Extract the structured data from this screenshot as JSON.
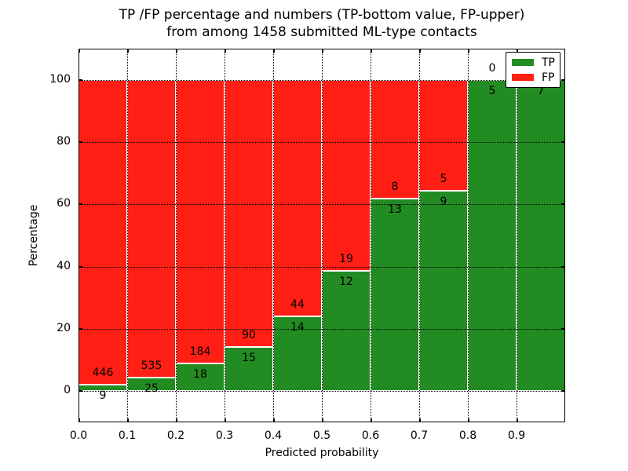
{
  "chart_data": {
    "type": "bar",
    "stacked": true,
    "title_line1": "TP /FP percentage and numbers (TP-bottom value, FP-upper)",
    "title_line2": "from among 1458 submitted ML-type contacts",
    "total_contacts": 1458,
    "xlabel": "Predicted probability",
    "ylabel": "Percentage",
    "xlim": [
      0.0,
      1.0
    ],
    "ylim": [
      -10,
      110
    ],
    "bin_width": 0.1,
    "bin_starts": [
      0.0,
      0.1,
      0.2,
      0.3,
      0.4,
      0.5,
      0.6,
      0.7,
      0.8,
      0.9
    ],
    "x_tick_labels": [
      "0.0",
      "0.1",
      "0.2",
      "0.3",
      "0.4",
      "0.5",
      "0.6",
      "0.7",
      "0.8",
      "0.9"
    ],
    "y_tick_labels": [
      "0",
      "20",
      "40",
      "60",
      "80",
      "100"
    ],
    "y_ticks": [
      0,
      20,
      40,
      60,
      80,
      100
    ],
    "grid": true,
    "legend_position": "upper right",
    "series": [
      {
        "name": "TP",
        "color": "#228b22",
        "counts": [
          9,
          25,
          18,
          15,
          14,
          12,
          13,
          9,
          5,
          7
        ]
      },
      {
        "name": "FP",
        "color": "#ff1f14",
        "counts": [
          446,
          535,
          184,
          90,
          44,
          19,
          8,
          5,
          0,
          0
        ]
      }
    ],
    "percent_tp": [
      1.98,
      4.46,
      8.91,
      14.29,
      24.14,
      38.71,
      61.9,
      64.29,
      100.0,
      100.0
    ]
  }
}
